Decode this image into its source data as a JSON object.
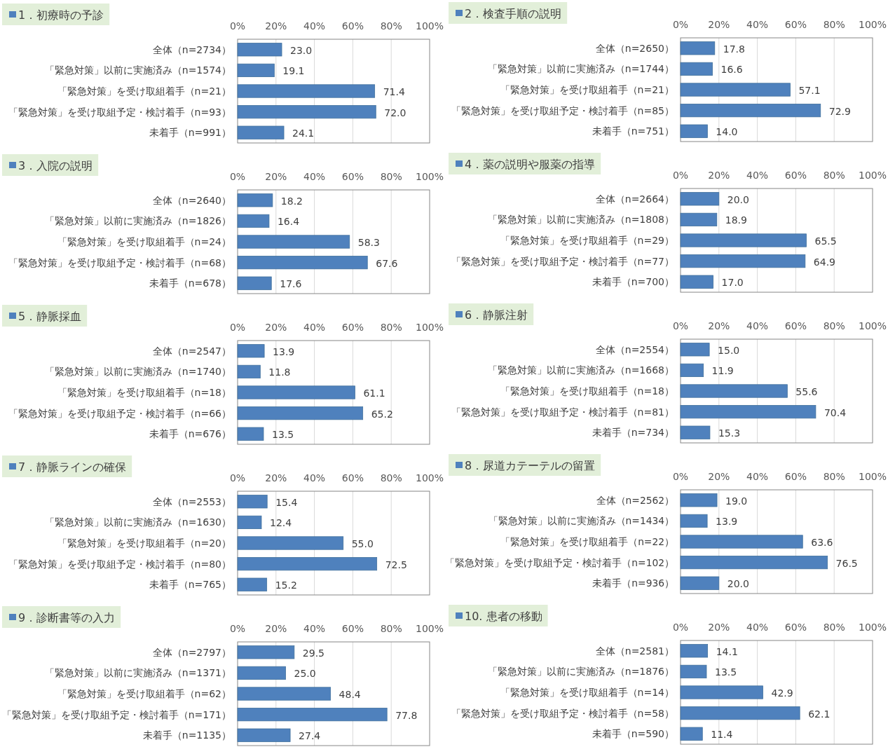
{
  "chart_data": [
    {
      "type": "bar",
      "orientation": "horizontal",
      "title": "1．初療時の予診",
      "categories": [
        "全体（n=2734）",
        "「緊急対策」以前に実施済み（n=1574）",
        "「緊急対策」を受け取組着手（n=21）",
        "「緊急対策」を受け取組予定・検討着手（n=93）",
        "未着手（n=991）"
      ],
      "values": [
        23.0,
        19.1,
        71.4,
        72.0,
        24.1
      ],
      "value_labels": [
        "23.0",
        "19.1",
        "71.4",
        "72.0",
        "24.1"
      ],
      "color": "#4f81bd",
      "xlim": [
        0,
        100
      ],
      "xticks": [
        {
          "value": 0,
          "label": "0%"
        },
        {
          "value": 20,
          "label": "20%"
        },
        {
          "value": 40,
          "label": "40%"
        },
        {
          "value": 60,
          "label": "60%"
        },
        {
          "value": 80,
          "label": "80%"
        },
        {
          "value": 100,
          "label": "100%"
        }
      ],
      "grid": "x"
    },
    {
      "type": "bar",
      "orientation": "horizontal",
      "title": "2．検査手順の説明",
      "categories": [
        "全体（n=2650）",
        "「緊急対策」以前に実施済み（n=1744）",
        "「緊急対策」を受け取組着手（n=21）",
        "「緊急対策」を受け取組予定・検討着手（n=85）",
        "未着手（n=751）"
      ],
      "values": [
        17.8,
        16.6,
        57.1,
        72.9,
        14.0
      ],
      "value_labels": [
        "17.8",
        "16.6",
        "57.1",
        "72.9",
        "14.0"
      ],
      "color": "#4f81bd",
      "xlim": [
        0,
        100
      ],
      "xticks": [
        {
          "value": 0,
          "label": "0%"
        },
        {
          "value": 20,
          "label": "20%"
        },
        {
          "value": 40,
          "label": "40%"
        },
        {
          "value": 60,
          "label": "60%"
        },
        {
          "value": 80,
          "label": "80%"
        },
        {
          "value": 100,
          "label": "100%"
        }
      ],
      "grid": "x"
    },
    {
      "type": "bar",
      "orientation": "horizontal",
      "title": "3．入院の説明",
      "categories": [
        "全体（n=2640）",
        "「緊急対策」以前に実施済み（n=1826）",
        "「緊急対策」を受け取組着手（n=24）",
        "「緊急対策」を受け取組予定・検討着手（n=68）",
        "未着手（n=678）"
      ],
      "values": [
        18.2,
        16.4,
        58.3,
        67.6,
        17.6
      ],
      "value_labels": [
        "18.2",
        "16.4",
        "58.3",
        "67.6",
        "17.6"
      ],
      "color": "#4f81bd",
      "xlim": [
        0,
        100
      ],
      "xticks": [
        {
          "value": 0,
          "label": "0%"
        },
        {
          "value": 20,
          "label": "20%"
        },
        {
          "value": 40,
          "label": "40%"
        },
        {
          "value": 60,
          "label": "60%"
        },
        {
          "value": 80,
          "label": "80%"
        },
        {
          "value": 100,
          "label": "100%"
        }
      ],
      "grid": "x"
    },
    {
      "type": "bar",
      "orientation": "horizontal",
      "title": "4．薬の説明や服薬の指導",
      "categories": [
        "全体（n=2664）",
        "「緊急対策」以前に実施済み（n=1808）",
        "「緊急対策」を受け取組着手（n=29）",
        "「緊急対策」を受け取組予定・検討着手（n=77）",
        "未着手（n=700）"
      ],
      "values": [
        20.0,
        18.9,
        65.5,
        64.9,
        17.0
      ],
      "value_labels": [
        "20.0",
        "18.9",
        "65.5",
        "64.9",
        "17.0"
      ],
      "color": "#4f81bd",
      "xlim": [
        0,
        100
      ],
      "xticks": [
        {
          "value": 0,
          "label": "0%"
        },
        {
          "value": 20,
          "label": "20%"
        },
        {
          "value": 40,
          "label": "40%"
        },
        {
          "value": 60,
          "label": "60%"
        },
        {
          "value": 80,
          "label": "80%"
        },
        {
          "value": 100,
          "label": "100%"
        }
      ],
      "grid": "x"
    },
    {
      "type": "bar",
      "orientation": "horizontal",
      "title": "5．静脈採血",
      "categories": [
        "全体（n=2547）",
        "「緊急対策」以前に実施済み（n=1740）",
        "「緊急対策」を受け取組着手（n=18）",
        "「緊急対策」を受け取組予定・検討着手（n=66）",
        "未着手（n=676）"
      ],
      "values": [
        13.9,
        11.8,
        61.1,
        65.2,
        13.5
      ],
      "value_labels": [
        "13.9",
        "11.8",
        "61.1",
        "65.2",
        "13.5"
      ],
      "color": "#4f81bd",
      "xlim": [
        0,
        100
      ],
      "xticks": [
        {
          "value": 0,
          "label": "0%"
        },
        {
          "value": 20,
          "label": "20%"
        },
        {
          "value": 40,
          "label": "40%"
        },
        {
          "value": 60,
          "label": "60%"
        },
        {
          "value": 80,
          "label": "80%"
        },
        {
          "value": 100,
          "label": "100%"
        }
      ],
      "grid": "x"
    },
    {
      "type": "bar",
      "orientation": "horizontal",
      "title": "6．静脈注射",
      "categories": [
        "全体（n=2554）",
        "「緊急対策」以前に実施済み（n=1668）",
        "「緊急対策」を受け取組着手（n=18）",
        "「緊急対策」を受け取組予定・検討着手（n=81）",
        "未着手（n=734）"
      ],
      "values": [
        15.0,
        11.9,
        55.6,
        70.4,
        15.3
      ],
      "value_labels": [
        "15.0",
        "11.9",
        "55.6",
        "70.4",
        "15.3"
      ],
      "color": "#4f81bd",
      "xlim": [
        0,
        100
      ],
      "xticks": [
        {
          "value": 0,
          "label": "0%"
        },
        {
          "value": 20,
          "label": "20%"
        },
        {
          "value": 40,
          "label": "40%"
        },
        {
          "value": 60,
          "label": "60%"
        },
        {
          "value": 80,
          "label": "80%"
        },
        {
          "value": 100,
          "label": "100%"
        }
      ],
      "grid": "x"
    },
    {
      "type": "bar",
      "orientation": "horizontal",
      "title": "7．静脈ラインの確保",
      "categories": [
        "全体（n=2553）",
        "「緊急対策」以前に実施済み（n=1630）",
        "「緊急対策」を受け取組着手（n=20）",
        "「緊急対策」を受け取組予定・検討着手（n=80）",
        "未着手（n=765）"
      ],
      "values": [
        15.4,
        12.4,
        55.0,
        72.5,
        15.2
      ],
      "value_labels": [
        "15.4",
        "12.4",
        "55.0",
        "72.5",
        "15.2"
      ],
      "color": "#4f81bd",
      "xlim": [
        0,
        100
      ],
      "xticks": [
        {
          "value": 0,
          "label": "0%"
        },
        {
          "value": 20,
          "label": "20%"
        },
        {
          "value": 40,
          "label": "40%"
        },
        {
          "value": 60,
          "label": "60%"
        },
        {
          "value": 80,
          "label": "80%"
        },
        {
          "value": 100,
          "label": "100%"
        }
      ],
      "grid": "x"
    },
    {
      "type": "bar",
      "orientation": "horizontal",
      "title": "8．尿道カテーテルの留置",
      "categories": [
        "全体（n=2562）",
        "「緊急対策」以前に実施済み（n=1434）",
        "「緊急対策」を受け取組着手（n=22）",
        "「緊急対策」を受け取組予定・検討着手（n=102）",
        "未着手（n=936）"
      ],
      "values": [
        19.0,
        13.9,
        63.6,
        76.5,
        20.0
      ],
      "value_labels": [
        "19.0",
        "13.9",
        "63.6",
        "76.5",
        "20.0"
      ],
      "color": "#4f81bd",
      "xlim": [
        0,
        100
      ],
      "xticks": [
        {
          "value": 0,
          "label": "0%"
        },
        {
          "value": 20,
          "label": "20%"
        },
        {
          "value": 40,
          "label": "40%"
        },
        {
          "value": 60,
          "label": "60%"
        },
        {
          "value": 80,
          "label": "80%"
        },
        {
          "value": 100,
          "label": "100%"
        }
      ],
      "grid": "x"
    },
    {
      "type": "bar",
      "orientation": "horizontal",
      "title": "9．診断書等の入力",
      "categories": [
        "全体（n=2797）",
        "「緊急対策」以前に実施済み（n=1371）",
        "「緊急対策」を受け取組着手（n=62）",
        "「緊急対策」を受け取組予定・検討着手（n=171）",
        "未着手（n=1135）"
      ],
      "values": [
        29.5,
        25.0,
        48.4,
        77.8,
        27.4
      ],
      "value_labels": [
        "29.5",
        "25.0",
        "48.4",
        "77.8",
        "27.4"
      ],
      "color": "#4f81bd",
      "xlim": [
        0,
        100
      ],
      "xticks": [
        {
          "value": 0,
          "label": "0%"
        },
        {
          "value": 20,
          "label": "20%"
        },
        {
          "value": 40,
          "label": "40%"
        },
        {
          "value": 60,
          "label": "60%"
        },
        {
          "value": 80,
          "label": "80%"
        },
        {
          "value": 100,
          "label": "100%"
        }
      ],
      "grid": "x"
    },
    {
      "type": "bar",
      "orientation": "horizontal",
      "title": "10. 患者の移動",
      "categories": [
        "全体（n=2581）",
        "「緊急対策」以前に実施済み（n=1876）",
        "「緊急対策」を受け取組着手（n=14）",
        "「緊急対策」を受け取組予定・検討着手（n=58）",
        "未着手（n=590）"
      ],
      "values": [
        14.1,
        13.5,
        42.9,
        62.1,
        11.4
      ],
      "value_labels": [
        "14.1",
        "13.5",
        "42.9",
        "62.1",
        "11.4"
      ],
      "color": "#4f81bd",
      "xlim": [
        0,
        100
      ],
      "xticks": [
        {
          "value": 0,
          "label": "0%"
        },
        {
          "value": 20,
          "label": "20%"
        },
        {
          "value": 40,
          "label": "40%"
        },
        {
          "value": 60,
          "label": "60%"
        },
        {
          "value": 80,
          "label": "80%"
        },
        {
          "value": 100,
          "label": "100%"
        }
      ],
      "grid": "x"
    }
  ]
}
